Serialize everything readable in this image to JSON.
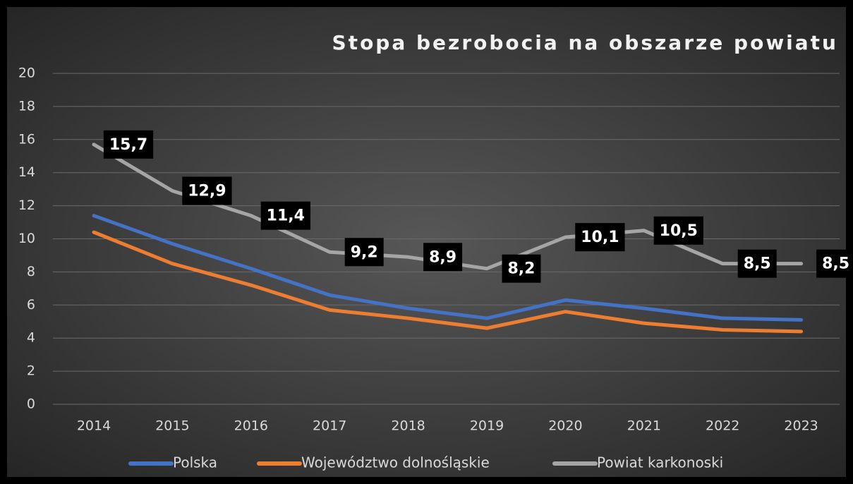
{
  "chart_data": {
    "type": "line",
    "title": "Stopa bezrobocia na obszarze powiatu",
    "categories": [
      "2014",
      "2015",
      "2016",
      "2017",
      "2018",
      "2019",
      "2020",
      "2021",
      "2022",
      "2023"
    ],
    "series": [
      {
        "name": "Polska",
        "color": "#4472c4",
        "values": [
          11.4,
          9.7,
          8.2,
          6.6,
          5.8,
          5.2,
          6.3,
          5.8,
          5.2,
          5.1
        ]
      },
      {
        "name": "Województwo dolnośląskie",
        "color": "#ed7d31",
        "values": [
          10.4,
          8.5,
          7.2,
          5.7,
          5.2,
          4.6,
          5.6,
          4.9,
          4.5,
          4.4
        ]
      },
      {
        "name": "Powiat karkonoski",
        "color": "#a5a5a5",
        "values": [
          15.7,
          12.9,
          11.4,
          9.2,
          8.9,
          8.2,
          10.1,
          10.5,
          8.5,
          8.5
        ],
        "value_labels": [
          "15,7",
          "12,9",
          "11,4",
          "9,2",
          "8,9",
          "8,2",
          "10,1",
          "10,5",
          "8,5",
          "8,5"
        ]
      }
    ],
    "ylim": [
      0,
      20
    ],
    "yticks": [
      0,
      2,
      4,
      6,
      8,
      10,
      12,
      14,
      16,
      18,
      20
    ],
    "grid": true,
    "legend": "bottom"
  }
}
